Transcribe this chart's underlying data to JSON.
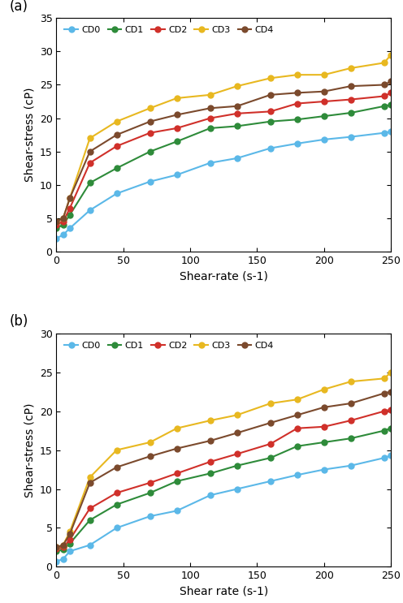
{
  "shear_rate": [
    0,
    5,
    10,
    25,
    45,
    70,
    90,
    115,
    135,
    160,
    180,
    200,
    220,
    245,
    250
  ],
  "panel_a": {
    "label": "(a)",
    "xlabel": "Shear-rate (s-1)",
    "ylabel": "Shear-stress (cP)",
    "ylim": [
      0,
      35
    ],
    "yticks": [
      0,
      5,
      10,
      15,
      20,
      25,
      30,
      35
    ],
    "xlim": [
      0,
      250
    ],
    "xticks": [
      0,
      50,
      100,
      150,
      200,
      250
    ],
    "series": {
      "CD0": {
        "color": "#5BB8E8",
        "data": [
          2,
          2.5,
          3.5,
          6.2,
          8.7,
          10.5,
          11.5,
          13.3,
          14.0,
          15.5,
          16.2,
          16.8,
          17.2,
          17.8,
          18.0
        ]
      },
      "CD1": {
        "color": "#2E8B3A",
        "data": [
          3.5,
          4.0,
          5.5,
          10.3,
          12.5,
          15.0,
          16.5,
          18.5,
          18.8,
          19.5,
          19.8,
          20.3,
          20.8,
          21.8,
          22.0
        ]
      },
      "CD2": {
        "color": "#D0302A",
        "data": [
          4.0,
          4.5,
          6.5,
          13.3,
          15.8,
          17.8,
          18.5,
          20.0,
          20.7,
          21.0,
          22.2,
          22.5,
          22.8,
          23.3,
          23.8
        ]
      },
      "CD3": {
        "color": "#E8B820",
        "data": [
          4.5,
          5.0,
          8.0,
          17.0,
          19.5,
          21.5,
          23.0,
          23.5,
          24.8,
          26.0,
          26.5,
          26.5,
          27.5,
          28.3,
          29.5
        ]
      },
      "CD4": {
        "color": "#7B4A2D",
        "data": [
          4.5,
          5.0,
          8.0,
          15.0,
          17.5,
          19.5,
          20.5,
          21.5,
          21.8,
          23.5,
          23.8,
          24.0,
          24.8,
          25.0,
          25.5
        ]
      }
    }
  },
  "panel_b": {
    "label": "(b)",
    "xlabel": "Shear rate (s-1)",
    "ylabel": "Shear-stress (cP)",
    "ylim": [
      0,
      30
    ],
    "yticks": [
      0,
      5,
      10,
      15,
      20,
      25,
      30
    ],
    "xlim": [
      0,
      250
    ],
    "xticks": [
      0,
      50,
      100,
      150,
      200,
      250
    ],
    "series": {
      "CD0": {
        "color": "#5BB8E8",
        "data": [
          0.7,
          1.0,
          2.0,
          2.8,
          5.0,
          6.5,
          7.2,
          9.2,
          10.0,
          11.0,
          11.8,
          12.5,
          13.0,
          14.0,
          14.3
        ]
      },
      "CD1": {
        "color": "#2E8B3A",
        "data": [
          2.0,
          2.2,
          3.0,
          6.0,
          8.0,
          9.5,
          11.0,
          12.0,
          13.0,
          14.0,
          15.5,
          16.0,
          16.5,
          17.5,
          17.8
        ]
      },
      "CD2": {
        "color": "#D0302A",
        "data": [
          2.3,
          2.5,
          3.5,
          7.5,
          9.5,
          10.8,
          12.0,
          13.5,
          14.5,
          15.8,
          17.8,
          18.0,
          18.8,
          20.0,
          20.2
        ]
      },
      "CD3": {
        "color": "#E8B820",
        "data": [
          2.5,
          2.8,
          4.5,
          11.5,
          15.0,
          16.0,
          17.8,
          18.8,
          19.5,
          21.0,
          21.5,
          22.8,
          23.8,
          24.2,
          25.0
        ]
      },
      "CD4": {
        "color": "#7B4A2D",
        "data": [
          2.5,
          2.8,
          4.2,
          10.8,
          12.8,
          14.2,
          15.2,
          16.2,
          17.2,
          18.5,
          19.5,
          20.5,
          21.0,
          22.3,
          22.5
        ]
      }
    }
  },
  "legend_order": [
    "CD0",
    "CD1",
    "CD2",
    "CD3",
    "CD4"
  ],
  "marker": "o",
  "markersize": 5,
  "linewidth": 1.5
}
